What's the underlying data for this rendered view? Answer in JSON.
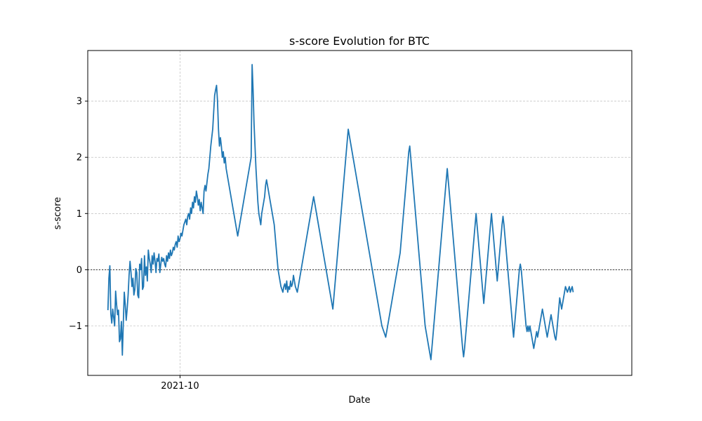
{
  "chart_data": {
    "type": "line",
    "title": "s-score Evolution for BTC",
    "xlabel": "Date",
    "ylabel": "s-score",
    "x_ticks": [
      {
        "position": 75,
        "label": "2021-10"
      }
    ],
    "y_ticks": [
      -1,
      0,
      1,
      2,
      3
    ],
    "xlim": [
      -21,
      545
    ],
    "ylim": [
      -1.88,
      3.9
    ],
    "grid": true,
    "zero_line": 0,
    "series": [
      {
        "name": "",
        "color": "#1f77b4",
        "x_start": 0,
        "x_step": 1,
        "values": [
          -0.72,
          -0.15,
          0.07,
          -0.78,
          -0.95,
          -0.7,
          -0.85,
          -1.0,
          -0.38,
          -0.62,
          -0.8,
          -0.72,
          -1.28,
          -1.23,
          -0.92,
          -1.52,
          -0.95,
          -0.4,
          -0.62,
          -0.9,
          -0.7,
          -0.45,
          -0.1,
          0.15,
          -0.05,
          -0.3,
          -0.15,
          -0.45,
          -0.35,
          0.02,
          -0.05,
          -0.45,
          -0.5,
          0.1,
          0.0,
          0.2,
          -0.35,
          -0.3,
          0.25,
          -0.1,
          0.05,
          -0.2,
          0.35,
          0.2,
          0.1,
          -0.05,
          0.25,
          0.1,
          0.3,
          0.15,
          -0.05,
          0.2,
          0.15,
          0.28,
          -0.05,
          0.1,
          0.22,
          0.15,
          0.2,
          0.1,
          0.05,
          0.25,
          0.15,
          0.3,
          0.2,
          0.35,
          0.25,
          0.3,
          0.4,
          0.35,
          0.45,
          0.5,
          0.4,
          0.6,
          0.5,
          0.55,
          0.65,
          0.6,
          0.7,
          0.8,
          0.85,
          0.9,
          0.8,
          0.95,
          1.0,
          0.9,
          1.1,
          1.0,
          1.2,
          1.1,
          1.3,
          1.2,
          1.4,
          1.3,
          1.15,
          1.25,
          1.05,
          1.2,
          1.1,
          1.0,
          1.4,
          1.5,
          1.4,
          1.55,
          1.7,
          1.8,
          2.0,
          2.2,
          2.35,
          2.5,
          2.8,
          3.1,
          3.2,
          3.28,
          3.0,
          2.5,
          2.2,
          2.35,
          2.2,
          2.0,
          2.1,
          1.9,
          2.0,
          1.8,
          1.7,
          1.6,
          1.5,
          1.4,
          1.3,
          1.2,
          1.1,
          1.0,
          0.9,
          0.8,
          0.7,
          0.6,
          0.7,
          0.8,
          0.9,
          1.0,
          1.1,
          1.2,
          1.3,
          1.4,
          1.5,
          1.6,
          1.7,
          1.8,
          1.9,
          2.0,
          3.65,
          3.2,
          2.6,
          2.2,
          1.8,
          1.5,
          1.2,
          1.0,
          0.9,
          0.8,
          1.0,
          1.1,
          1.2,
          1.3,
          1.5,
          1.6,
          1.5,
          1.4,
          1.3,
          1.2,
          1.1,
          1.0,
          0.9,
          0.8,
          0.6,
          0.4,
          0.2,
          0.0,
          -0.1,
          -0.2,
          -0.3,
          -0.35,
          -0.4,
          -0.3,
          -0.25,
          -0.35,
          -0.2,
          -0.4,
          -0.3,
          -0.35,
          -0.2,
          -0.3,
          -0.25,
          -0.1,
          -0.2,
          -0.3,
          -0.35,
          -0.4,
          -0.3,
          -0.2,
          -0.1,
          0.0,
          0.1,
          0.2,
          0.3,
          0.4,
          0.5,
          0.6,
          0.7,
          0.8,
          0.9,
          1.0,
          1.1,
          1.2,
          1.3,
          1.2,
          1.1,
          1.0,
          0.9,
          0.8,
          0.7,
          0.6,
          0.5,
          0.4,
          0.3,
          0.2,
          0.1,
          0.0,
          -0.1,
          -0.2,
          -0.3,
          -0.4,
          -0.5,
          -0.6,
          -0.7,
          -0.5,
          -0.3,
          -0.1,
          0.1,
          0.3,
          0.5,
          0.7,
          0.9,
          1.1,
          1.3,
          1.5,
          1.7,
          1.9,
          2.1,
          2.3,
          2.5,
          2.4,
          2.3,
          2.2,
          2.1,
          2.0,
          1.9,
          1.8,
          1.7,
          1.6,
          1.5,
          1.4,
          1.3,
          1.2,
          1.1,
          1.0,
          0.9,
          0.8,
          0.7,
          0.6,
          0.5,
          0.4,
          0.3,
          0.2,
          0.1,
          0.0,
          -0.1,
          -0.2,
          -0.3,
          -0.4,
          -0.5,
          -0.6,
          -0.7,
          -0.8,
          -0.9,
          -1.0,
          -1.05,
          -1.1,
          -1.15,
          -1.2,
          -1.1,
          -1.0,
          -0.9,
          -0.8,
          -0.7,
          -0.6,
          -0.5,
          -0.4,
          -0.3,
          -0.2,
          -0.1,
          0.0,
          0.1,
          0.2,
          0.3,
          0.5,
          0.7,
          0.9,
          1.1,
          1.3,
          1.5,
          1.7,
          1.9,
          2.1,
          2.2,
          2.0,
          1.8,
          1.6,
          1.4,
          1.2,
          1.0,
          0.8,
          0.6,
          0.4,
          0.2,
          0.0,
          -0.2,
          -0.4,
          -0.6,
          -0.8,
          -1.0,
          -1.1,
          -1.2,
          -1.3,
          -1.4,
          -1.5,
          -1.6,
          -1.4,
          -1.2,
          -1.0,
          -0.8,
          -0.6,
          -0.4,
          -0.2,
          0.0,
          0.2,
          0.4,
          0.6,
          0.8,
          1.0,
          1.2,
          1.4,
          1.6,
          1.8,
          1.6,
          1.4,
          1.2,
          1.0,
          0.8,
          0.6,
          0.4,
          0.2,
          0.0,
          -0.2,
          -0.4,
          -0.6,
          -0.8,
          -1.0,
          -1.2,
          -1.4,
          -1.55,
          -1.4,
          -1.2,
          -1.0,
          -0.8,
          -0.6,
          -0.4,
          -0.2,
          0.0,
          0.2,
          0.4,
          0.6,
          0.8,
          1.0,
          0.8,
          0.6,
          0.4,
          0.2,
          0.0,
          -0.2,
          -0.4,
          -0.6,
          -0.4,
          -0.2,
          0.0,
          0.2,
          0.4,
          0.6,
          0.8,
          1.0,
          0.8,
          0.6,
          0.4,
          0.2,
          0.0,
          -0.2,
          0.0,
          0.2,
          0.4,
          0.6,
          0.8,
          0.95,
          0.8,
          0.6,
          0.4,
          0.2,
          0.0,
          -0.2,
          -0.4,
          -0.6,
          -0.8,
          -1.0,
          -1.2,
          -1.0,
          -0.8,
          -0.6,
          -0.4,
          -0.2,
          0.0,
          0.1,
          0.0,
          -0.2,
          -0.4,
          -0.6,
          -0.8,
          -1.0,
          -1.1,
          -1.0,
          -1.1,
          -1.0,
          -1.1,
          -1.2,
          -1.3,
          -1.4,
          -1.3,
          -1.2,
          -1.1,
          -1.2,
          -1.1,
          -1.0,
          -0.9,
          -0.8,
          -0.7,
          -0.8,
          -0.9,
          -1.0,
          -1.1,
          -1.2,
          -1.1,
          -1.0,
          -0.9,
          -0.8,
          -0.9,
          -1.0,
          -1.1,
          -1.2,
          -1.25,
          -1.1,
          -0.9,
          -0.7,
          -0.5,
          -0.6,
          -0.7,
          -0.6,
          -0.5,
          -0.4,
          -0.3,
          -0.35,
          -0.4,
          -0.35,
          -0.3,
          -0.4,
          -0.35,
          -0.3,
          -0.4
        ]
      }
    ]
  }
}
